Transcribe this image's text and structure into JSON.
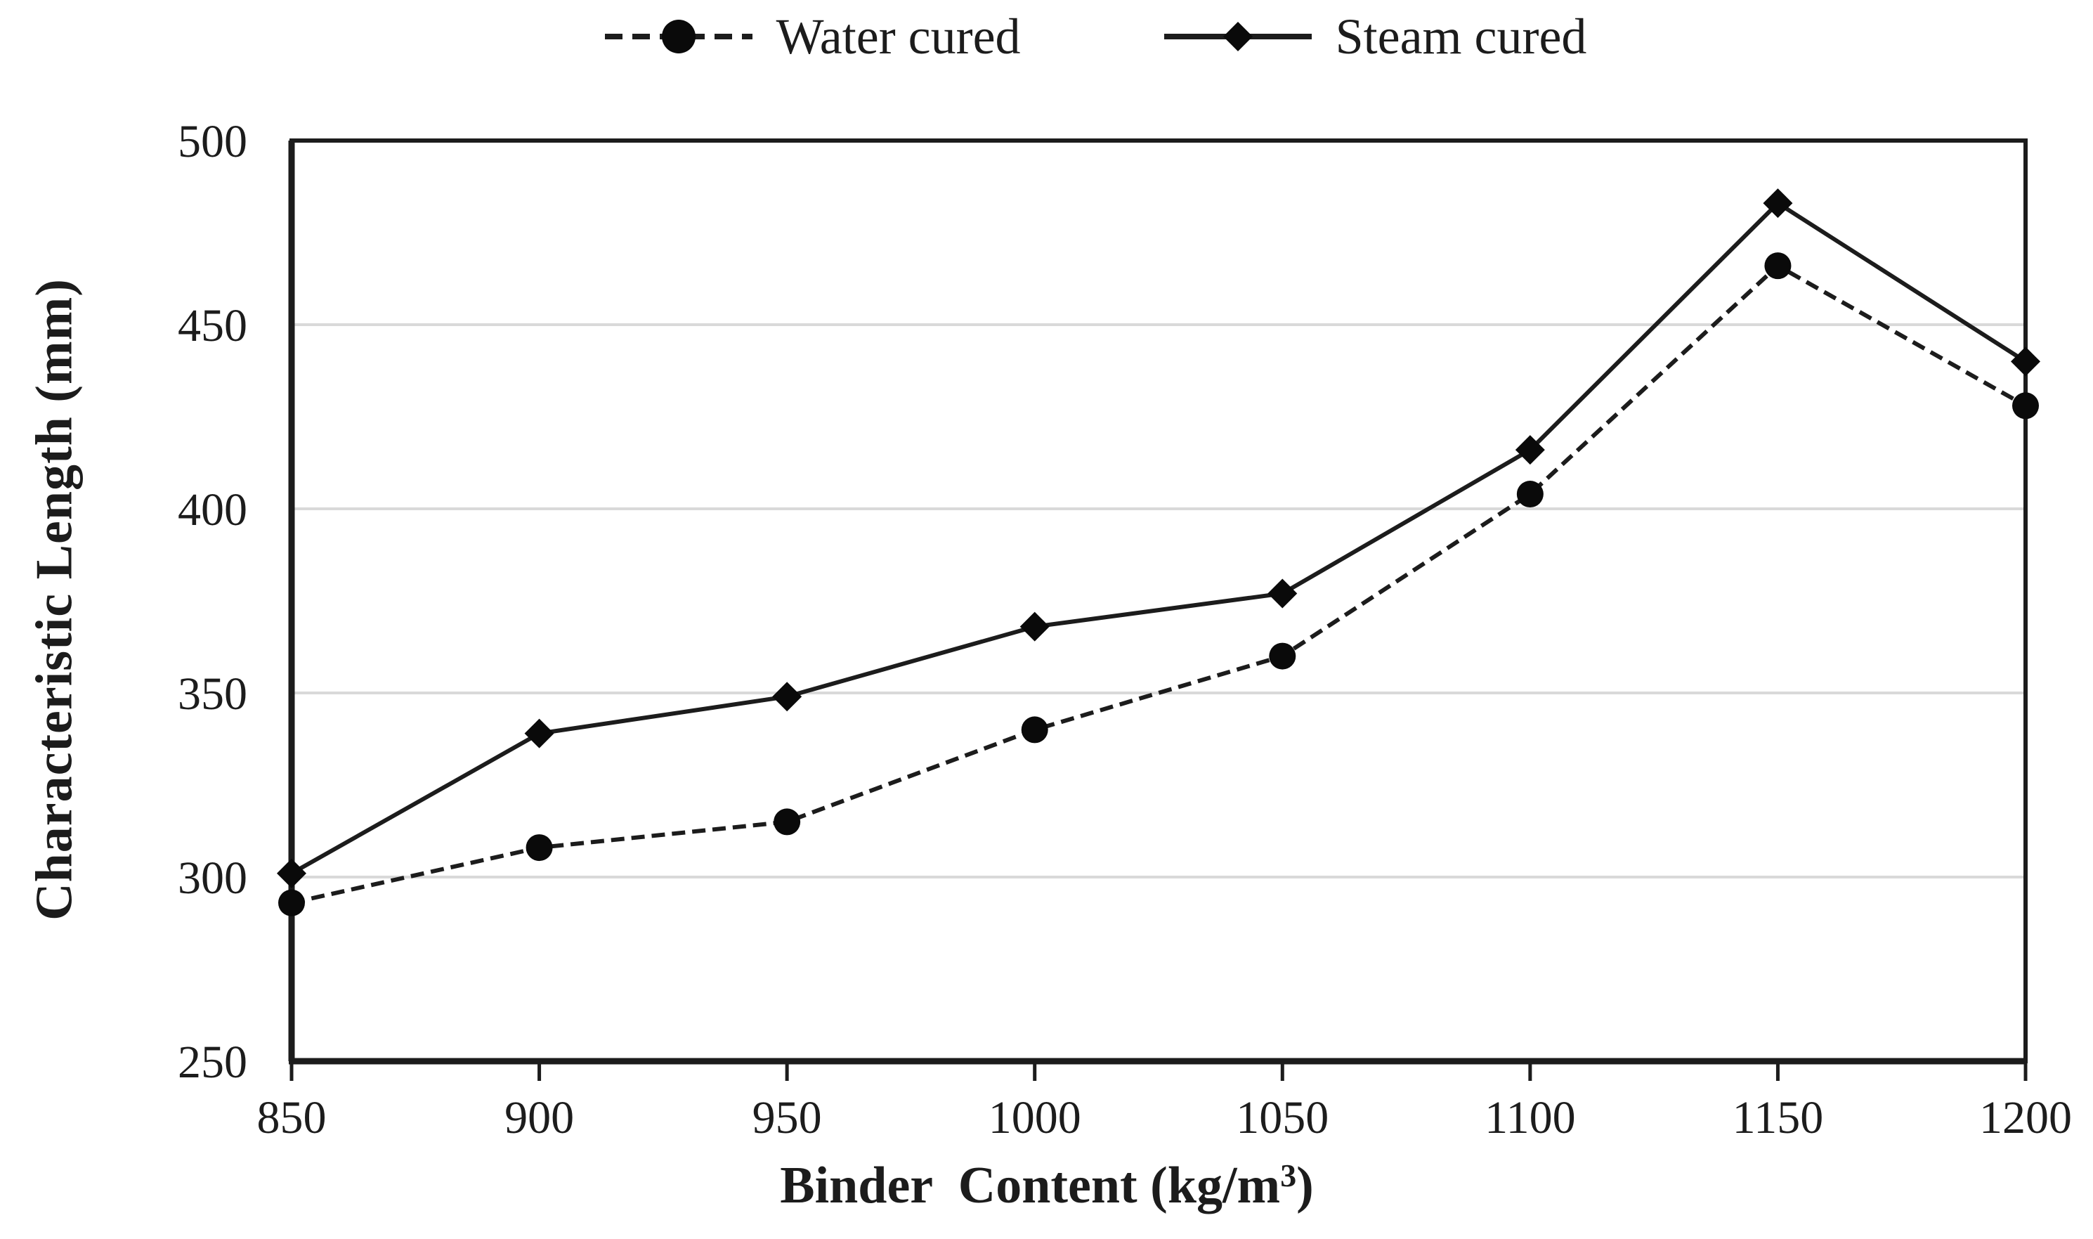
{
  "figure": {
    "background": "#ffffff",
    "ink_color": "#1c1c1c",
    "marker_color": "#0a0a0a",
    "gridline_color": "#d9d9d9"
  },
  "legend": {
    "position": "top-center",
    "items": [
      {
        "label": "Water cured",
        "marker": "circle",
        "line_style": "dashed"
      },
      {
        "label": "Steam cured",
        "marker": "diamond",
        "line_style": "solid"
      }
    ]
  },
  "chart_data": {
    "type": "line",
    "title": "",
    "x": [
      850,
      900,
      950,
      1000,
      1050,
      1100,
      1150,
      1200
    ],
    "series": [
      {
        "name": "Water cured",
        "marker": "circle",
        "line_style": "dashed",
        "values": [
          293,
          308,
          315,
          340,
          360,
          404,
          466,
          428
        ]
      },
      {
        "name": "Steam cured",
        "marker": "diamond",
        "line_style": "solid",
        "values": [
          301,
          339,
          349,
          368,
          377,
          416,
          483,
          440
        ]
      }
    ],
    "xlabel": {
      "prefix": "Binder  Content (kg/m",
      "sup": "3",
      "suffix": ")"
    },
    "ylabel": "Characteristic Length (mm)",
    "xlim": [
      850,
      1200
    ],
    "ylim": [
      250,
      500
    ],
    "xticks": [
      850,
      900,
      950,
      1000,
      1050,
      1100,
      1150,
      1200
    ],
    "yticks": [
      250,
      300,
      350,
      400,
      450,
      500
    ],
    "grid": "horizontal-only",
    "legend_position": "top-center"
  }
}
